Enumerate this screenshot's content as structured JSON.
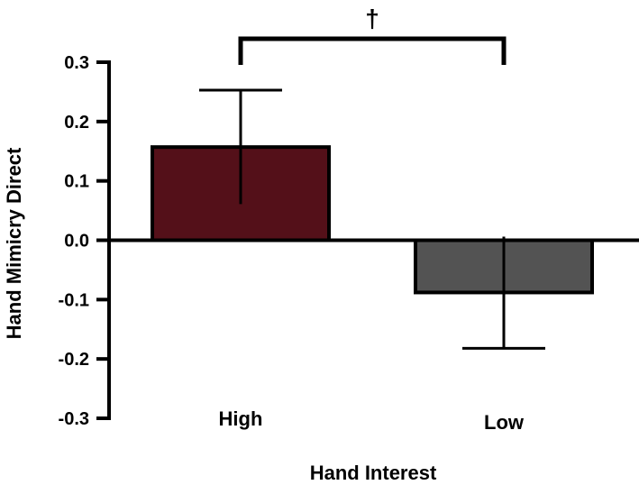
{
  "chart_data": {
    "type": "bar",
    "title": "",
    "xlabel": "Hand Interest",
    "ylabel": "Hand Mimicry Direct",
    "ylim": [
      -0.3,
      0.3
    ],
    "yticks": [
      "0.3",
      "0.2",
      "0.1",
      "0.0",
      "-0.1",
      "-0.2",
      "-0.3"
    ],
    "ytick_values": [
      0.3,
      0.2,
      0.1,
      0.0,
      -0.1,
      -0.2,
      -0.3
    ],
    "categories": [
      "High",
      "Low"
    ],
    "values": [
      0.157,
      -0.088
    ],
    "errors": [
      0.096,
      0.094
    ],
    "colors": [
      "#541019",
      "#535353"
    ],
    "significance": {
      "between": [
        "High",
        "Low"
      ],
      "label": "†"
    },
    "grid": false,
    "legend": "none"
  }
}
